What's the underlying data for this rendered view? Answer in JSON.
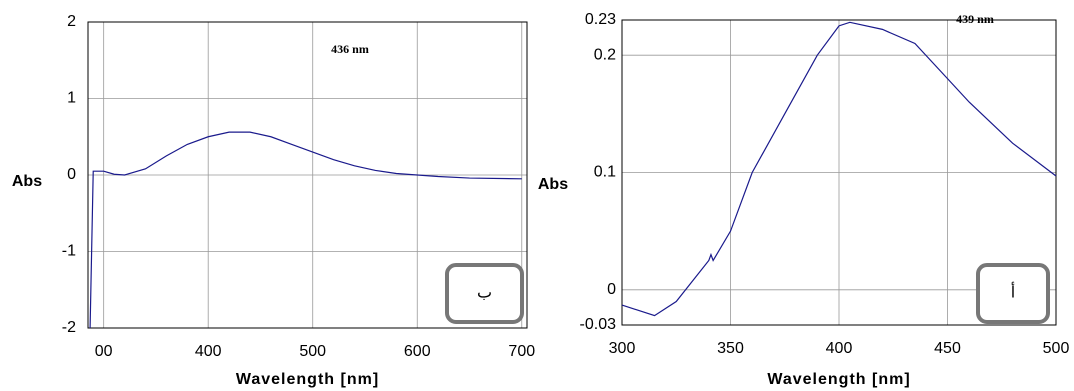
{
  "chart_data": [
    {
      "type": "line",
      "x_label": "Wavelength [nm]",
      "y_label": "Abs",
      "annotation": "436 nm",
      "panel_label": "ب",
      "xlim": [
        285,
        705
      ],
      "ylim": [
        -2,
        2
      ],
      "xticks": [
        {
          "value": 300,
          "label": "00"
        },
        400,
        500,
        600,
        700
      ],
      "yticks": [
        -2,
        -1,
        0,
        1,
        2
      ],
      "grid": true,
      "x": [
        287,
        290,
        300,
        310,
        320,
        340,
        360,
        380,
        400,
        420,
        440,
        460,
        480,
        500,
        520,
        540,
        560,
        580,
        600,
        620,
        650,
        700
      ],
      "series": [
        {
          "color": "#1a1a8c",
          "values": [
            -2,
            0.05,
            0.05,
            0.01,
            0,
            0.08,
            0.25,
            0.4,
            0.5,
            0.56,
            0.56,
            0.5,
            0.4,
            0.3,
            0.2,
            0.12,
            0.06,
            0.02,
            0,
            -0.02,
            -0.04,
            -0.05
          ]
        }
      ]
    },
    {
      "type": "line",
      "x_label": "Wavelength [nm]",
      "y_label": "Abs",
      "annotation": "439 nm",
      "panel_label": "أ",
      "xlim": [
        300,
        500
      ],
      "ylim": [
        -0.03,
        0.23
      ],
      "xticks": [
        300,
        350,
        400,
        450,
        500
      ],
      "yticks": [
        -0.03,
        0,
        0.1,
        0.2,
        0.23
      ],
      "grid": true,
      "x": [
        300,
        315,
        325,
        340,
        341,
        342,
        350,
        360,
        375,
        390,
        400,
        405,
        420,
        435,
        450,
        460,
        480,
        500
      ],
      "series": [
        {
          "color": "#1a1a8c",
          "values": [
            -0.013,
            -0.022,
            -0.01,
            0.025,
            0.03,
            0.025,
            0.05,
            0.1,
            0.15,
            0.2,
            0.225,
            0.228,
            0.222,
            0.21,
            0.18,
            0.16,
            0.125,
            0.097
          ]
        }
      ]
    }
  ]
}
